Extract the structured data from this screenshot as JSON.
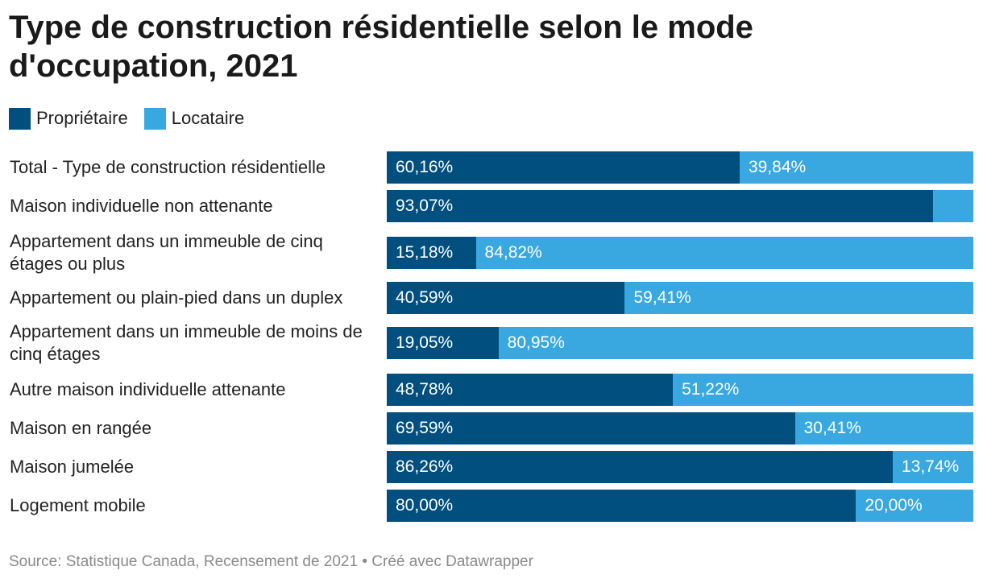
{
  "title": "Type de construction résidentielle selon le mode d'occupation, 2021",
  "legend": [
    {
      "label": "Propriétaire",
      "color": "#004f7f"
    },
    {
      "label": "Locataire",
      "color": "#39a8e0"
    }
  ],
  "source": "Source: Statistique Canada, Recensement de 2021 • Créé avec Datawrapper",
  "chart_data": {
    "type": "bar",
    "orientation": "horizontal",
    "stacked": true,
    "title": "Type de construction résidentielle selon le mode d'occupation, 2021",
    "xlabel": "",
    "ylabel": "",
    "xlim": [
      0,
      100
    ],
    "grid": false,
    "legend_position": "top-left",
    "categories": [
      "Total - Type de construction résidentielle",
      "Maison individuelle non attenante",
      "Appartement dans un immeuble de cinq étages ou plus",
      "Appartement ou plain-pied dans un duplex",
      "Appartement dans un immeuble de moins de cinq étages",
      "Autre maison individuelle attenante",
      "Maison en rangée",
      "Maison jumelée",
      "Logement mobile"
    ],
    "series": [
      {
        "name": "Propriétaire",
        "color": "#004f7f",
        "values": [
          60.16,
          93.07,
          15.18,
          40.59,
          19.05,
          48.78,
          69.59,
          86.26,
          80.0
        ],
        "labels": [
          "60,16%",
          "93,07%",
          "15,18%",
          "40,59%",
          "19,05%",
          "48,78%",
          "69,59%",
          "86,26%",
          "80,00%"
        ]
      },
      {
        "name": "Locataire",
        "color": "#39a8e0",
        "values": [
          39.84,
          6.93,
          84.82,
          59.41,
          80.95,
          51.22,
          30.41,
          13.74,
          20.0
        ],
        "labels": [
          "39,84%",
          "",
          "84,82%",
          "59,41%",
          "80,95%",
          "51,22%",
          "30,41%",
          "13,74%",
          "20,00%"
        ]
      }
    ]
  }
}
